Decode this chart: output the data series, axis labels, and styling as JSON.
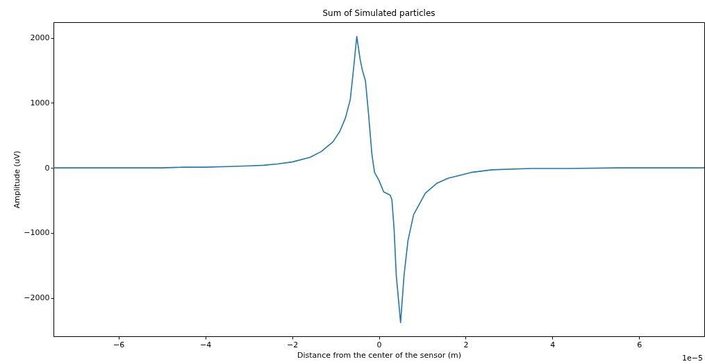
{
  "chart_data": {
    "type": "line",
    "title": "Sum of Simulated particles",
    "xlabel": "Distance from the center of the sensor (m)",
    "ylabel": "Amplitude (uV)",
    "annotations": [
      "1e−5"
    ],
    "series": [
      {
        "color": "#1f77b4",
        "x": [
          -7.5,
          -6.5,
          -5.5,
          -5,
          -4.5,
          -4,
          -3.5,
          -3,
          -2.66,
          -2.34,
          -2,
          -1.59,
          -1.33,
          -1.06,
          -0.9,
          -0.77,
          -0.66,
          -0.58,
          -0.51,
          -0.43,
          -0.38,
          -0.31,
          -0.24,
          -0.16,
          -0.1,
          0.0,
          0.11,
          0.26,
          0.3,
          0.35,
          0.4,
          0.5,
          0.58,
          0.67,
          0.8,
          1.07,
          1.33,
          1.6,
          2.13,
          2.61,
          3.5,
          4.37,
          5.5,
          6.5,
          7.5
        ],
        "values": [
          0,
          0,
          0,
          0,
          10,
          10,
          20,
          30,
          40,
          60,
          90,
          160,
          250,
          400,
          560,
          770,
          1050,
          1550,
          2020,
          1660,
          1500,
          1340,
          840,
          200,
          -70,
          -190,
          -370,
          -420,
          -490,
          -940,
          -1650,
          -2380,
          -1650,
          -1120,
          -720,
          -390,
          -240,
          -160,
          -70,
          -30,
          -10,
          -10,
          0,
          0,
          0
        ]
      }
    ],
    "xlim": [
      -7.5,
      7.5
    ],
    "ylim": [
      -2590,
      2240
    ],
    "xticks": [
      {
        "value": -6,
        "label": "−6"
      },
      {
        "value": -4,
        "label": "−4"
      },
      {
        "value": -2,
        "label": "−2"
      },
      0,
      2,
      4,
      6
    ],
    "yticks": [
      {
        "value": -2000,
        "label": "−2000"
      },
      {
        "value": -1000,
        "label": "−1000"
      },
      0,
      1000,
      2000
    ],
    "grid": false,
    "line_style": "solid",
    "marker": "none"
  }
}
